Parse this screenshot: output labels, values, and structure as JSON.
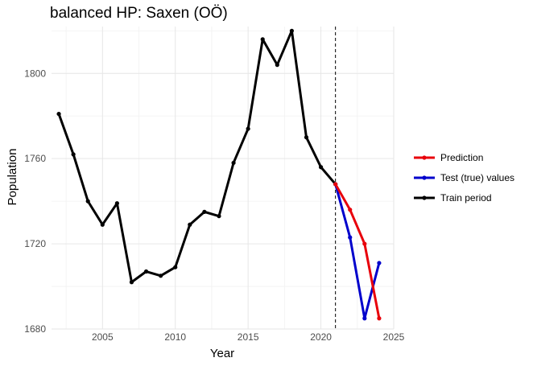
{
  "chart_data": {
    "type": "line",
    "title": "balanced HP: Saxen (OÖ)",
    "xlabel": "Year",
    "ylabel": "Population",
    "xlim": [
      2001.5,
      2025
    ],
    "ylim": [
      1680,
      1822
    ],
    "x_ticks": [
      2005,
      2010,
      2015,
      2020,
      2025
    ],
    "y_ticks": [
      1680,
      1720,
      1760,
      1800
    ],
    "grid": true,
    "cutoff_line": {
      "x": 2021,
      "style": "dashed"
    },
    "legend_position": "right",
    "series": [
      {
        "name": "Prediction",
        "color": "#e8000b",
        "x": [
          2021,
          2022,
          2023,
          2024
        ],
        "y": [
          1748,
          1736,
          1720,
          1685
        ]
      },
      {
        "name": "Test (true) values",
        "color": "#0000cc",
        "x": [
          2021,
          2022,
          2023,
          2024
        ],
        "y": [
          1748,
          1723,
          1685,
          1711
        ]
      },
      {
        "name": "Train period",
        "color": "#000000",
        "x": [
          2002,
          2003,
          2004,
          2005,
          2006,
          2007,
          2008,
          2009,
          2010,
          2011,
          2012,
          2013,
          2014,
          2015,
          2016,
          2017,
          2018,
          2019,
          2020,
          2021
        ],
        "y": [
          1781,
          1762,
          1740,
          1729,
          1739,
          1702,
          1707,
          1705,
          1709,
          1729,
          1735,
          1733,
          1758,
          1774,
          1816,
          1804,
          1820,
          1770,
          1756,
          1748
        ]
      }
    ]
  }
}
